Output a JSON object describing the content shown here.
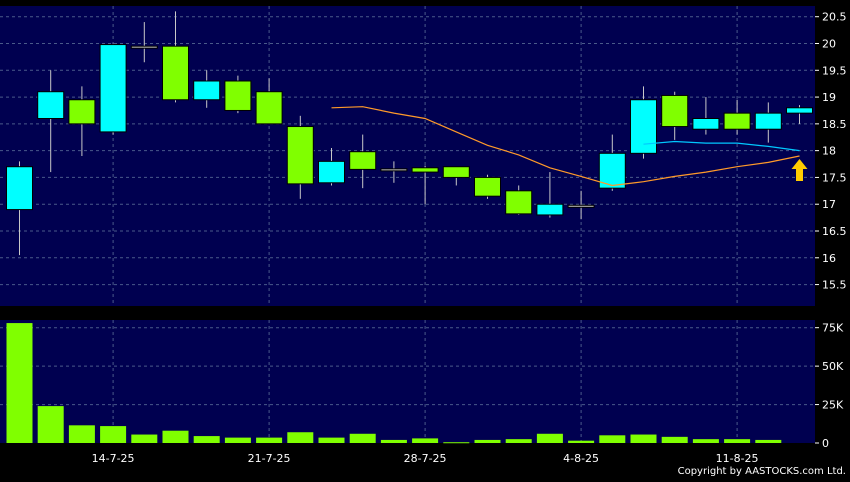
{
  "copyright": "Copyright by AASTOCKS.com Ltd.",
  "colors": {
    "plot_bg": "#000050",
    "grid": "#4a5a8a",
    "up": "#00ffff",
    "down": "#80ff00",
    "ma_short": "#00c8ff",
    "ma_long": "#ff9a2a",
    "arrow": "#ffcc00",
    "text": "#ffffff"
  },
  "chart_data": {
    "type": "candlestick",
    "price_axis": {
      "ylim": [
        15.1,
        20.7
      ],
      "ticks": [
        "15.5",
        "16",
        "16.5",
        "17",
        "17.5",
        "18",
        "18.5",
        "19",
        "19.5",
        "20",
        "20.5"
      ]
    },
    "volume_axis": {
      "ylim": [
        0,
        80000
      ],
      "ticks": [
        "0",
        "25K",
        "50K",
        "75K"
      ]
    },
    "x_tick_labels": [
      {
        "index": 3,
        "label": "14-7-25"
      },
      {
        "index": 8,
        "label": "21-7-25"
      },
      {
        "index": 13,
        "label": "28-7-25"
      },
      {
        "index": 18,
        "label": "4-8-25"
      },
      {
        "index": 23,
        "label": "11-8-25"
      }
    ],
    "candles": [
      {
        "open": 16.9,
        "high": 17.8,
        "low": 16.05,
        "close": 17.7,
        "volume": 78000
      },
      {
        "open": 18.6,
        "high": 19.5,
        "low": 17.6,
        "close": 19.1,
        "volume": 24000
      },
      {
        "open": 18.95,
        "high": 19.2,
        "low": 17.9,
        "close": 18.5,
        "volume": 11500
      },
      {
        "open": 18.35,
        "high": 20.0,
        "low": 18.3,
        "close": 19.98,
        "volume": 11000
      },
      {
        "open": 19.95,
        "high": 20.4,
        "low": 19.65,
        "close": 19.95,
        "volume": 5500
      },
      {
        "open": 19.95,
        "high": 20.6,
        "low": 18.9,
        "close": 18.95,
        "volume": 8000
      },
      {
        "open": 18.95,
        "high": 19.5,
        "low": 18.8,
        "close": 19.3,
        "volume": 4500
      },
      {
        "open": 19.3,
        "high": 19.4,
        "low": 18.7,
        "close": 18.75,
        "volume": 3500
      },
      {
        "open": 19.1,
        "high": 19.35,
        "low": 18.5,
        "close": 18.5,
        "volume": 3500
      },
      {
        "open": 18.45,
        "high": 18.65,
        "low": 17.1,
        "close": 17.38,
        "volume": 7000
      },
      {
        "open": 17.4,
        "high": 18.05,
        "low": 17.35,
        "close": 17.8,
        "volume": 3500
      },
      {
        "open": 17.98,
        "high": 18.3,
        "low": 17.3,
        "close": 17.65,
        "volume": 6000
      },
      {
        "open": 17.66,
        "high": 17.8,
        "low": 17.4,
        "close": 17.66,
        "volume": 2000
      },
      {
        "open": 17.68,
        "high": 17.72,
        "low": 17.0,
        "close": 17.6,
        "volume": 3000
      },
      {
        "open": 17.7,
        "high": 17.7,
        "low": 17.35,
        "close": 17.5,
        "volume": 500
      },
      {
        "open": 17.5,
        "high": 17.55,
        "low": 17.1,
        "close": 17.15,
        "volume": 2000
      },
      {
        "open": 17.25,
        "high": 17.35,
        "low": 16.8,
        "close": 16.82,
        "volume": 2500
      },
      {
        "open": 16.8,
        "high": 17.6,
        "low": 16.75,
        "close": 17.0,
        "volume": 6000
      },
      {
        "open": 16.98,
        "high": 17.25,
        "low": 16.72,
        "close": 16.98,
        "volume": 1500
      },
      {
        "open": 17.3,
        "high": 18.3,
        "low": 17.25,
        "close": 17.95,
        "volume": 5000
      },
      {
        "open": 17.95,
        "high": 19.2,
        "low": 17.85,
        "close": 18.95,
        "volume": 5500
      },
      {
        "open": 19.03,
        "high": 19.1,
        "low": 18.2,
        "close": 18.45,
        "volume": 4000
      },
      {
        "open": 18.4,
        "high": 19.0,
        "low": 18.3,
        "close": 18.6,
        "volume": 2500
      },
      {
        "open": 18.7,
        "high": 18.95,
        "low": 18.3,
        "close": 18.4,
        "volume": 2500
      },
      {
        "open": 18.4,
        "high": 18.9,
        "low": 18.15,
        "close": 18.7,
        "volume": 2000
      },
      {
        "open": 18.7,
        "high": 18.85,
        "low": 18.5,
        "close": 18.8,
        "volume": 0
      }
    ],
    "ma_short": [
      {
        "index": 20,
        "value": 18.12
      },
      {
        "index": 21,
        "value": 18.17
      },
      {
        "index": 22,
        "value": 18.14
      },
      {
        "index": 23,
        "value": 18.14
      },
      {
        "index": 24,
        "value": 18.08
      },
      {
        "index": 25,
        "value": 18.0
      }
    ],
    "ma_long": [
      {
        "index": 10,
        "value": 18.8
      },
      {
        "index": 11,
        "value": 18.82
      },
      {
        "index": 12,
        "value": 18.7
      },
      {
        "index": 13,
        "value": 18.6
      },
      {
        "index": 14,
        "value": 18.35
      },
      {
        "index": 15,
        "value": 18.1
      },
      {
        "index": 16,
        "value": 17.92
      },
      {
        "index": 17,
        "value": 17.68
      },
      {
        "index": 18,
        "value": 17.52
      },
      {
        "index": 19,
        "value": 17.35
      },
      {
        "index": 20,
        "value": 17.42
      },
      {
        "index": 21,
        "value": 17.52
      },
      {
        "index": 22,
        "value": 17.6
      },
      {
        "index": 23,
        "value": 17.7
      },
      {
        "index": 24,
        "value": 17.78
      },
      {
        "index": 25,
        "value": 17.9
      }
    ]
  }
}
